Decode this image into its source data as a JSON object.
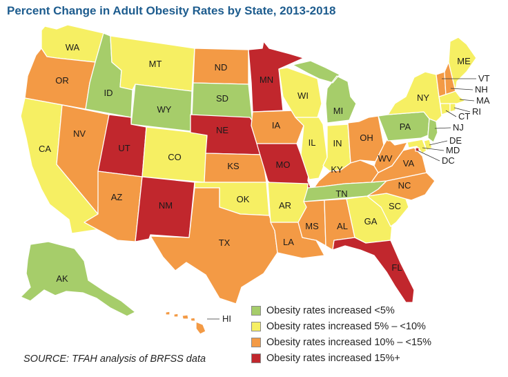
{
  "title": "Percent Change in Adult Obesity Rates by State, 2013-2018",
  "source": "SOURCE: TFAH analysis of BRFSS data",
  "colors": {
    "c1": "#a6cd6a",
    "c2": "#f6ef63",
    "c3": "#f39a45",
    "c4": "#c1272d"
  },
  "legend": [
    {
      "category": "c1",
      "label": "Obesity rates increased <5%"
    },
    {
      "category": "c2",
      "label": "Obesity rates increased 5% – <10%"
    },
    {
      "category": "c3",
      "label": "Obesity rates increased 10% – <15%"
    },
    {
      "category": "c4",
      "label": "Obesity rates increased 15%+"
    }
  ],
  "states": [
    {
      "abbr": "WA",
      "category": "c2"
    },
    {
      "abbr": "OR",
      "category": "c3"
    },
    {
      "abbr": "CA",
      "category": "c2"
    },
    {
      "abbr": "ID",
      "category": "c1"
    },
    {
      "abbr": "NV",
      "category": "c3"
    },
    {
      "abbr": "MT",
      "category": "c2"
    },
    {
      "abbr": "WY",
      "category": "c1"
    },
    {
      "abbr": "UT",
      "category": "c4"
    },
    {
      "abbr": "AZ",
      "category": "c3"
    },
    {
      "abbr": "CO",
      "category": "c2"
    },
    {
      "abbr": "NM",
      "category": "c4"
    },
    {
      "abbr": "ND",
      "category": "c3"
    },
    {
      "abbr": "SD",
      "category": "c1"
    },
    {
      "abbr": "NE",
      "category": "c4"
    },
    {
      "abbr": "KS",
      "category": "c3"
    },
    {
      "abbr": "OK",
      "category": "c2"
    },
    {
      "abbr": "TX",
      "category": "c3"
    },
    {
      "abbr": "MN",
      "category": "c4"
    },
    {
      "abbr": "IA",
      "category": "c3"
    },
    {
      "abbr": "MO",
      "category": "c4"
    },
    {
      "abbr": "AR",
      "category": "c2"
    },
    {
      "abbr": "LA",
      "category": "c3"
    },
    {
      "abbr": "WI",
      "category": "c2"
    },
    {
      "abbr": "IL",
      "category": "c2"
    },
    {
      "abbr": "MI",
      "category": "c1"
    },
    {
      "abbr": "IN",
      "category": "c2"
    },
    {
      "abbr": "OH",
      "category": "c3"
    },
    {
      "abbr": "KY",
      "category": "c3"
    },
    {
      "abbr": "TN",
      "category": "c1"
    },
    {
      "abbr": "MS",
      "category": "c3"
    },
    {
      "abbr": "AL",
      "category": "c3"
    },
    {
      "abbr": "GA",
      "category": "c2"
    },
    {
      "abbr": "FL",
      "category": "c4"
    },
    {
      "abbr": "SC",
      "category": "c2"
    },
    {
      "abbr": "NC",
      "category": "c3"
    },
    {
      "abbr": "VA",
      "category": "c3"
    },
    {
      "abbr": "WV",
      "category": "c3"
    },
    {
      "abbr": "PA",
      "category": "c1"
    },
    {
      "abbr": "NY",
      "category": "c2"
    },
    {
      "abbr": "VT",
      "category": "c3"
    },
    {
      "abbr": "NH",
      "category": "c3"
    },
    {
      "abbr": "ME",
      "category": "c2"
    },
    {
      "abbr": "MA",
      "category": "c2"
    },
    {
      "abbr": "RI",
      "category": "c2"
    },
    {
      "abbr": "CT",
      "category": "c2"
    },
    {
      "abbr": "NJ",
      "category": "c1"
    },
    {
      "abbr": "DE",
      "category": "c2"
    },
    {
      "abbr": "MD",
      "category": "c2"
    },
    {
      "abbr": "DC",
      "category": "c4"
    },
    {
      "abbr": "AK",
      "category": "c1"
    },
    {
      "abbr": "HI",
      "category": "c3"
    }
  ]
}
